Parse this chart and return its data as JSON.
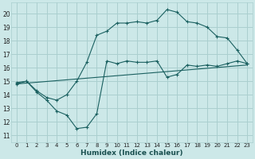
{
  "xlabel": "Humidex (Indice chaleur)",
  "bg_color": "#cce8e8",
  "grid_color": "#aacfcf",
  "line_color": "#1a6060",
  "xlim": [
    -0.5,
    23.5
  ],
  "ylim": [
    10.5,
    20.8
  ],
  "yticks": [
    11,
    12,
    13,
    14,
    15,
    16,
    17,
    18,
    19,
    20
  ],
  "xticks": [
    0,
    1,
    2,
    3,
    4,
    5,
    6,
    7,
    8,
    9,
    10,
    11,
    12,
    13,
    14,
    15,
    16,
    17,
    18,
    19,
    20,
    21,
    22,
    23
  ],
  "line1_x": [
    0,
    1,
    2,
    3,
    4,
    5,
    6,
    7,
    8,
    9,
    10,
    11,
    12,
    13,
    14,
    15,
    16,
    17,
    18,
    19,
    20,
    21,
    22,
    23
  ],
  "line1_y": [
    14.9,
    15.0,
    14.2,
    13.6,
    12.8,
    12.5,
    11.5,
    11.6,
    12.6,
    16.5,
    16.3,
    16.5,
    16.4,
    16.4,
    16.5,
    15.3,
    15.5,
    16.2,
    16.1,
    16.2,
    16.1,
    16.3,
    16.5,
    16.3
  ],
  "line2_x": [
    0,
    1,
    2,
    3,
    4,
    5,
    6,
    7,
    8,
    9,
    10,
    11,
    12,
    13,
    14,
    15,
    16,
    17,
    18,
    19,
    20,
    21,
    22,
    23
  ],
  "line2_y": [
    14.8,
    15.0,
    14.3,
    13.8,
    13.6,
    14.0,
    15.0,
    16.4,
    18.4,
    18.7,
    19.3,
    19.3,
    19.4,
    19.3,
    19.5,
    20.3,
    20.1,
    19.4,
    19.3,
    19.0,
    18.3,
    18.2,
    17.3,
    16.3
  ],
  "line3_x": [
    0,
    23
  ],
  "line3_y": [
    14.8,
    16.2
  ]
}
